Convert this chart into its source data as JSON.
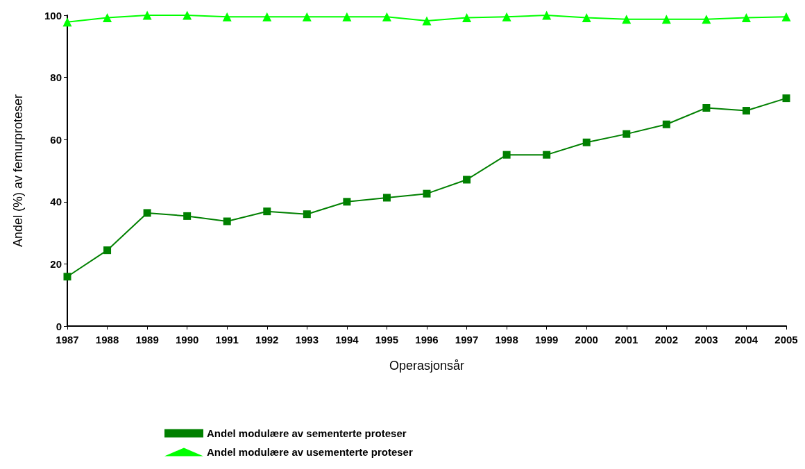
{
  "chart_data": {
    "type": "line",
    "xlabel": "Operasjonsår",
    "ylabel": "Andel (%) av femurproteser",
    "categories": [
      "1987",
      "1988",
      "1989",
      "1990",
      "1991",
      "1992",
      "1993",
      "1994",
      "1995",
      "1996",
      "1997",
      "1998",
      "1999",
      "2000",
      "2001",
      "2002",
      "2003",
      "2004",
      "2005"
    ],
    "series": [
      {
        "name": "Andel modulære av sementerte proteser",
        "color": "#008000",
        "marker": "square",
        "values": [
          15.9,
          24.4,
          36.4,
          35.4,
          33.7,
          36.9,
          36.0,
          40.0,
          41.3,
          42.6,
          47.1,
          55.1,
          55.1,
          59.1,
          61.8,
          64.9,
          70.2,
          69.3,
          73.3
        ]
      },
      {
        "name": "Andel modulære av usementerte proteser",
        "color": "#00ff00",
        "marker": "triangle",
        "values": [
          97.8,
          99.2,
          100,
          100,
          99.5,
          99.5,
          99.5,
          99.5,
          99.5,
          98.2,
          99.2,
          99.5,
          100,
          99.2,
          98.7,
          98.7,
          98.7,
          99.2,
          99.5
        ]
      }
    ],
    "ylim": [
      0,
      100
    ],
    "yticks": [
      0,
      20,
      40,
      60,
      80,
      100
    ],
    "grid": false,
    "legend": "bottom"
  }
}
